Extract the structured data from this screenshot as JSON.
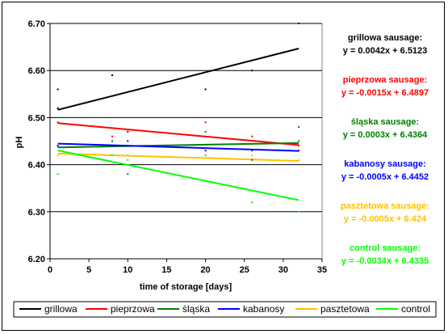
{
  "chart_data": {
    "type": "scatter",
    "xlabel": "time of storage [days]",
    "ylabel": "pH",
    "xlim": [
      0,
      35
    ],
    "ylim": [
      6.2,
      6.7
    ],
    "x_ticks": [
      "0",
      "5",
      "10",
      "15",
      "20",
      "25",
      "30",
      "35"
    ],
    "y_ticks": [
      "6.20",
      "6.30",
      "6.40",
      "6.50",
      "6.60",
      "6.70"
    ],
    "grid": "horizontal",
    "legend_position": "bottom",
    "series": [
      {
        "name": "grillowa",
        "color": "#000000",
        "points": [
          [
            1,
            6.56
          ],
          [
            1,
            6.52
          ],
          [
            8,
            6.59
          ],
          [
            10,
            6.47
          ],
          [
            20,
            6.56
          ],
          [
            26,
            6.6
          ],
          [
            32,
            6.7
          ]
        ],
        "trend": {
          "slope": 0.0042,
          "intercept": 6.5123,
          "x_range": [
            1,
            32
          ]
        },
        "equation_title": "grillowa sausage:",
        "equation": "y = 0.0042x + 6.5123"
      },
      {
        "name": "pieprzowa",
        "color": "#ff0000",
        "points": [
          [
            1,
            6.49
          ],
          [
            8,
            6.46
          ],
          [
            10,
            6.47
          ],
          [
            20,
            6.49
          ],
          [
            26,
            6.46
          ],
          [
            32,
            6.44
          ]
        ],
        "trend": {
          "slope": -0.0015,
          "intercept": 6.4897,
          "x_range": [
            1,
            32
          ]
        },
        "equation_title": "pieprzowa sausage:",
        "equation": "y = -0.0015x + 6.4897"
      },
      {
        "name": "śląska",
        "color": "#008000",
        "points": [
          [
            1,
            6.44
          ],
          [
            8,
            6.45
          ],
          [
            10,
            6.38
          ],
          [
            20,
            6.47
          ],
          [
            26,
            6.41
          ],
          [
            32,
            6.48
          ],
          [
            32,
            6.45
          ]
        ],
        "trend": {
          "slope": 0.0003,
          "intercept": 6.4364,
          "x_range": [
            1,
            32
          ]
        },
        "equation_title": "śląska sausage:",
        "equation": "y = 0.0003x + 6.4364"
      },
      {
        "name": "kabanosy",
        "color": "#0000ff",
        "points": [
          [
            1,
            6.44
          ],
          [
            8,
            6.44
          ],
          [
            10,
            6.45
          ],
          [
            20,
            6.43
          ],
          [
            26,
            6.43
          ],
          [
            32,
            6.43
          ]
        ],
        "trend": {
          "slope": -0.0005,
          "intercept": 6.4452,
          "x_range": [
            1,
            32
          ]
        },
        "equation_title": "kabanosy sausage:",
        "equation": "y = -0.0005x + 6.4452"
      },
      {
        "name": "pasztetowa",
        "color": "#ffc000",
        "points": [
          [
            1,
            6.42
          ],
          [
            8,
            6.42
          ],
          [
            10,
            6.42
          ],
          [
            20,
            6.42
          ],
          [
            26,
            6.42
          ],
          [
            32,
            6.41
          ]
        ],
        "trend": {
          "slope": -0.0005,
          "intercept": 6.424,
          "x_range": [
            1,
            32
          ]
        },
        "equation_title": "pasztetowa sausage:",
        "equation": "y = -0.0005x + 6.424"
      },
      {
        "name": "control",
        "color": "#00ff00",
        "points": [
          [
            1,
            6.38
          ],
          [
            8,
            6.42
          ],
          [
            10,
            6.41
          ],
          [
            20,
            6.42
          ],
          [
            26,
            6.32
          ],
          [
            32,
            6.3
          ]
        ],
        "trend": {
          "slope": -0.0034,
          "intercept": 6.4335,
          "x_range": [
            1,
            32
          ]
        },
        "equation_title": "control sausage:",
        "equation": "y = -0.0034x + 6.4335"
      }
    ]
  }
}
